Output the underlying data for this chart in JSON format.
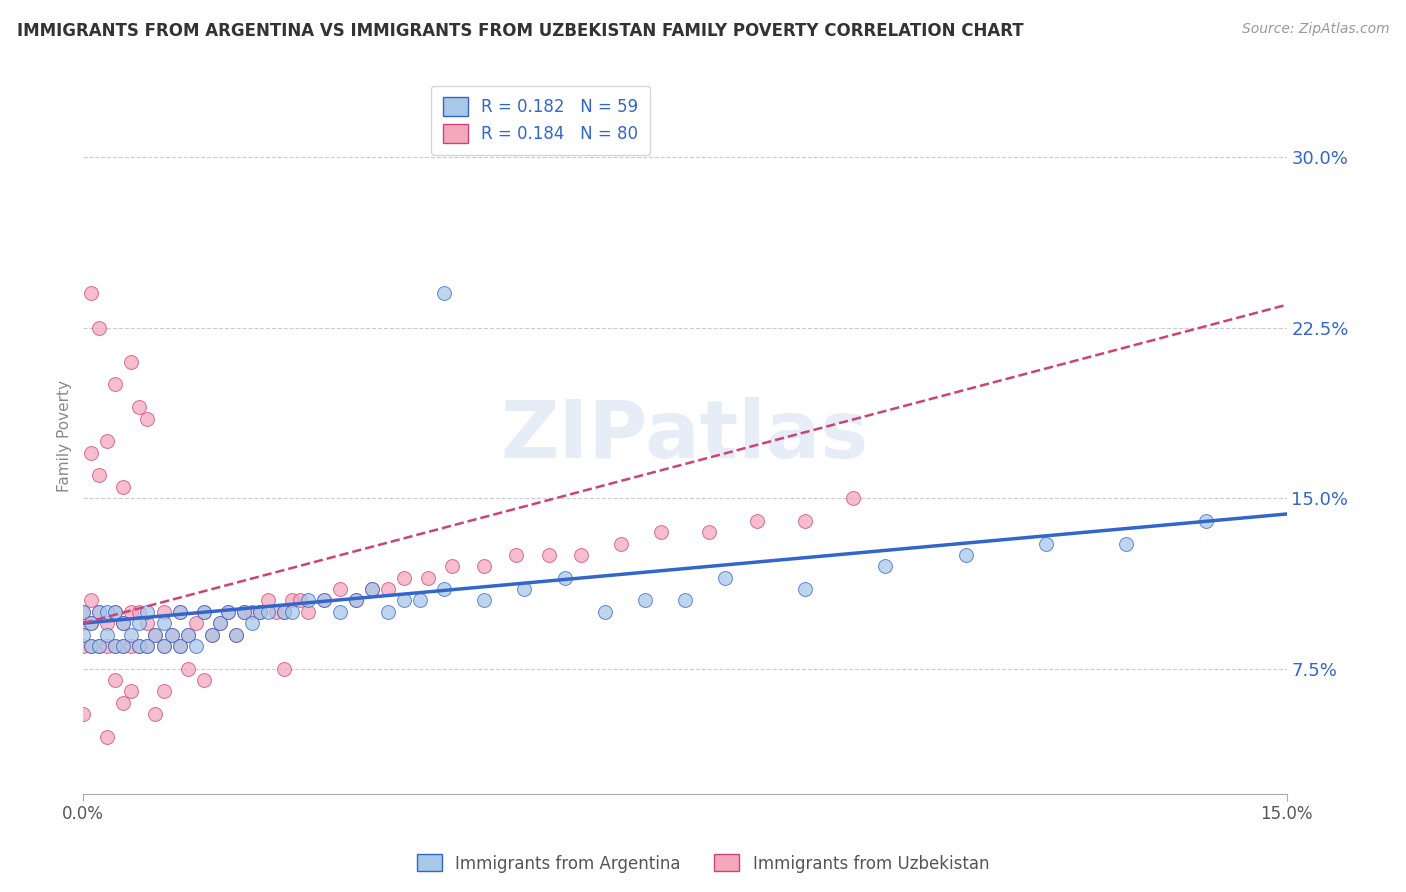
{
  "title": "IMMIGRANTS FROM ARGENTINA VS IMMIGRANTS FROM UZBEKISTAN FAMILY POVERTY CORRELATION CHART",
  "source": "Source: ZipAtlas.com",
  "ylabel": "Family Poverty",
  "ytick_labels": [
    "7.5%",
    "15.0%",
    "22.5%",
    "30.0%"
  ],
  "ytick_values": [
    0.075,
    0.15,
    0.225,
    0.3
  ],
  "xlim": [
    0.0,
    0.15
  ],
  "ylim": [
    0.02,
    0.335
  ],
  "legend_r1": "R = 0.182",
  "legend_n1": "N = 59",
  "legend_r2": "R = 0.184",
  "legend_n2": "N = 80",
  "color_argentina": "#a8c8e8",
  "color_uzbekistan": "#f4a8bc",
  "line_color_argentina": "#3366cc",
  "line_color_uzbekistan": "#cc4477",
  "watermark": "ZIPatlas",
  "argentina_line": [
    0.0,
    0.15,
    0.095,
    0.143
  ],
  "uzbekistan_line": [
    0.0,
    0.15,
    0.095,
    0.235
  ],
  "argentina_x": [
    0.0,
    0.0,
    0.001,
    0.001,
    0.002,
    0.002,
    0.003,
    0.003,
    0.004,
    0.004,
    0.005,
    0.005,
    0.006,
    0.007,
    0.007,
    0.008,
    0.008,
    0.009,
    0.01,
    0.01,
    0.011,
    0.012,
    0.012,
    0.013,
    0.014,
    0.015,
    0.016,
    0.017,
    0.018,
    0.019,
    0.02,
    0.021,
    0.022,
    0.023,
    0.025,
    0.026,
    0.028,
    0.03,
    0.032,
    0.034,
    0.036,
    0.038,
    0.04,
    0.042,
    0.045,
    0.05,
    0.055,
    0.06,
    0.065,
    0.07,
    0.075,
    0.08,
    0.09,
    0.1,
    0.11,
    0.12,
    0.13,
    0.14,
    0.045
  ],
  "argentina_y": [
    0.09,
    0.1,
    0.085,
    0.095,
    0.085,
    0.1,
    0.09,
    0.1,
    0.085,
    0.1,
    0.085,
    0.095,
    0.09,
    0.085,
    0.095,
    0.085,
    0.1,
    0.09,
    0.085,
    0.095,
    0.09,
    0.085,
    0.1,
    0.09,
    0.085,
    0.1,
    0.09,
    0.095,
    0.1,
    0.09,
    0.1,
    0.095,
    0.1,
    0.1,
    0.1,
    0.1,
    0.105,
    0.105,
    0.1,
    0.105,
    0.11,
    0.1,
    0.105,
    0.105,
    0.11,
    0.105,
    0.11,
    0.115,
    0.1,
    0.105,
    0.105,
    0.115,
    0.11,
    0.12,
    0.125,
    0.13,
    0.13,
    0.14,
    0.24
  ],
  "uzbekistan_x": [
    0.0,
    0.0,
    0.0,
    0.001,
    0.001,
    0.001,
    0.002,
    0.002,
    0.003,
    0.003,
    0.004,
    0.004,
    0.005,
    0.005,
    0.006,
    0.006,
    0.007,
    0.007,
    0.008,
    0.008,
    0.009,
    0.01,
    0.01,
    0.011,
    0.012,
    0.012,
    0.013,
    0.014,
    0.015,
    0.016,
    0.017,
    0.018,
    0.019,
    0.02,
    0.021,
    0.022,
    0.023,
    0.024,
    0.025,
    0.026,
    0.027,
    0.028,
    0.03,
    0.032,
    0.034,
    0.036,
    0.038,
    0.04,
    0.043,
    0.046,
    0.05,
    0.054,
    0.058,
    0.062,
    0.067,
    0.072,
    0.078,
    0.084,
    0.09,
    0.096,
    0.005,
    0.002,
    0.001,
    0.003,
    0.008,
    0.007,
    0.004,
    0.006,
    0.002,
    0.001,
    0.003,
    0.0,
    0.005,
    0.01,
    0.015,
    0.009,
    0.004,
    0.006,
    0.013,
    0.025
  ],
  "uzbekistan_y": [
    0.085,
    0.095,
    0.1,
    0.085,
    0.095,
    0.105,
    0.085,
    0.1,
    0.085,
    0.095,
    0.085,
    0.1,
    0.085,
    0.095,
    0.085,
    0.1,
    0.085,
    0.1,
    0.085,
    0.095,
    0.09,
    0.085,
    0.1,
    0.09,
    0.085,
    0.1,
    0.09,
    0.095,
    0.1,
    0.09,
    0.095,
    0.1,
    0.09,
    0.1,
    0.1,
    0.1,
    0.105,
    0.1,
    0.1,
    0.105,
    0.105,
    0.1,
    0.105,
    0.11,
    0.105,
    0.11,
    0.11,
    0.115,
    0.115,
    0.12,
    0.12,
    0.125,
    0.125,
    0.125,
    0.13,
    0.135,
    0.135,
    0.14,
    0.14,
    0.15,
    0.155,
    0.16,
    0.17,
    0.175,
    0.185,
    0.19,
    0.2,
    0.21,
    0.225,
    0.24,
    0.045,
    0.055,
    0.06,
    0.065,
    0.07,
    0.055,
    0.07,
    0.065,
    0.075,
    0.075
  ]
}
